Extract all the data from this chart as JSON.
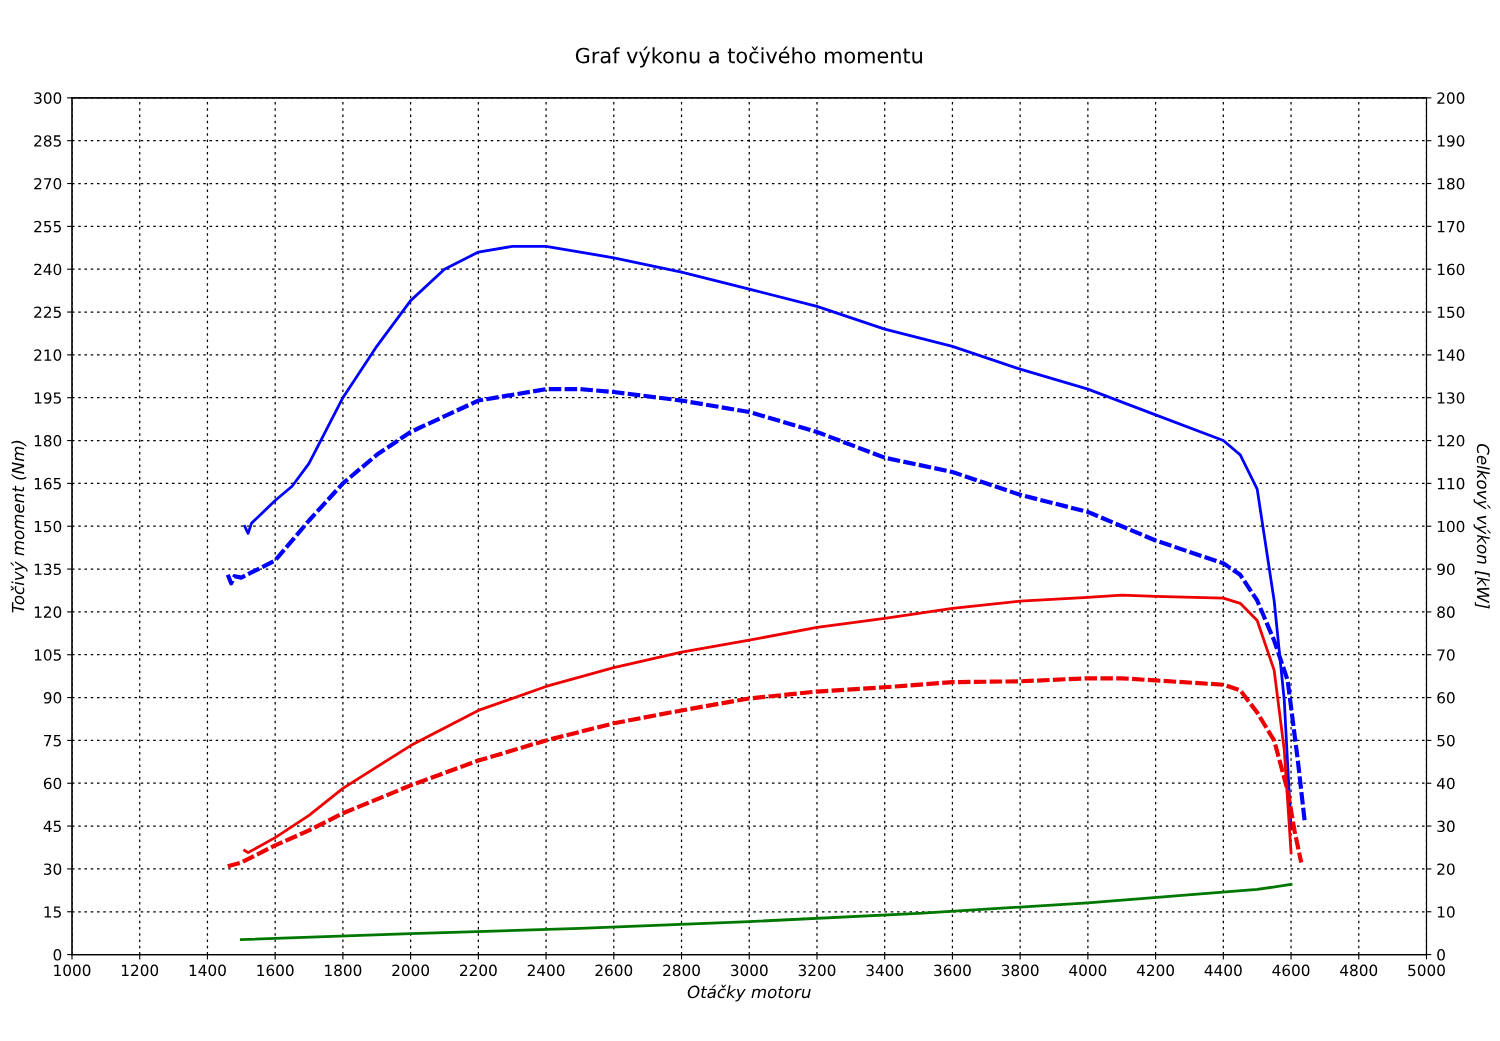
{
  "chart_data": {
    "type": "line",
    "title": "Graf výkonu a točivého momentu",
    "xlabel": "Otáčky motoru",
    "ylabel": "Točivý moment (Nm)",
    "y2label": "Celkový výkon [kW]",
    "xlim": [
      1000,
      5000
    ],
    "xticks": [
      1000,
      1200,
      1400,
      1600,
      1800,
      2000,
      2200,
      2400,
      2600,
      2800,
      3000,
      3200,
      3400,
      3600,
      3800,
      4000,
      4200,
      4400,
      4600,
      4800,
      5000
    ],
    "ylim": [
      0,
      300
    ],
    "yticks": [
      0,
      15,
      30,
      45,
      60,
      75,
      90,
      105,
      120,
      135,
      150,
      165,
      180,
      195,
      210,
      225,
      240,
      255,
      270,
      285,
      300
    ],
    "y2lim": [
      0,
      200
    ],
    "y2ticks": [
      0,
      10,
      20,
      30,
      40,
      50,
      60,
      70,
      80,
      90,
      100,
      110,
      120,
      130,
      140,
      150,
      160,
      170,
      180,
      190,
      200
    ],
    "grid": true,
    "series": [
      {
        "color": "#0000ff",
        "axis": "y",
        "line_style": "solid",
        "x": [
          1510,
          1520,
          1530,
          1600,
          1650,
          1700,
          1800,
          1900,
          2000,
          2100,
          2200,
          2300,
          2400,
          2600,
          2800,
          3000,
          3200,
          3400,
          3600,
          3800,
          4000,
          4200,
          4400,
          4450,
          4500,
          4550,
          4580,
          4600
        ],
        "values": [
          150,
          147.5,
          151,
          159,
          164,
          172,
          195,
          213,
          229,
          240,
          246,
          248,
          248,
          244,
          239,
          233,
          227,
          219,
          213,
          205,
          198,
          189,
          180,
          175,
          163,
          124,
          89,
          44
        ]
      },
      {
        "color": "#0000ff",
        "axis": "y",
        "line_style": "dashed",
        "x": [
          1460,
          1470,
          1480,
          1500,
          1600,
          1700,
          1800,
          1900,
          2000,
          2200,
          2400,
          2500,
          2600,
          2800,
          3000,
          3200,
          3400,
          3600,
          3800,
          4000,
          4200,
          4400,
          4450,
          4500,
          4550,
          4590,
          4620,
          4640
        ],
        "values": [
          133,
          130,
          132.5,
          132,
          138,
          152,
          165,
          175,
          183,
          194,
          198,
          198,
          197,
          194,
          190,
          183,
          174,
          169,
          161,
          155,
          145,
          137,
          133,
          124,
          110,
          96,
          68,
          47
        ]
      },
      {
        "color": "#ee0000",
        "axis": "y2",
        "line_style": "solid",
        "x": [
          1510,
          1520,
          1600,
          1700,
          1800,
          2000,
          2200,
          2400,
          2600,
          2800,
          3000,
          3200,
          3400,
          3600,
          3800,
          4000,
          4100,
          4200,
          4400,
          4450,
          4500,
          4550,
          4580,
          4600
        ],
        "values": [
          24.3,
          23.8,
          27.3,
          32.5,
          38.8,
          48.8,
          57,
          62.6,
          67,
          70.6,
          73.4,
          76.4,
          78.5,
          80.8,
          82.5,
          83.4,
          83.9,
          83.6,
          83.2,
          82,
          78,
          66.4,
          47.7,
          23.8
        ]
      },
      {
        "color": "#ee0000",
        "axis": "y2",
        "line_style": "dashed",
        "x": [
          1460,
          1500,
          1600,
          1700,
          1800,
          2000,
          2200,
          2400,
          2600,
          2800,
          3000,
          3200,
          3400,
          3600,
          3800,
          4000,
          4100,
          4200,
          4400,
          4450,
          4500,
          4550,
          4590,
          4610,
          4630
        ],
        "values": [
          20.6,
          21.5,
          25.5,
          29,
          33,
          39.5,
          45.3,
          50,
          54,
          57,
          59.8,
          61.4,
          62.4,
          63.6,
          63.8,
          64.5,
          64.5,
          64,
          63,
          61.7,
          56.5,
          50,
          38.3,
          29,
          21.5
        ]
      },
      {
        "color": "#007700",
        "axis": "y2",
        "line_style": "solid",
        "x": [
          1500,
          2000,
          2500,
          3000,
          3500,
          4000,
          4500,
          4600
        ],
        "values": [
          3.5,
          4.9,
          6.1,
          7.7,
          9.6,
          12.1,
          15.2,
          16.4
        ]
      }
    ]
  }
}
